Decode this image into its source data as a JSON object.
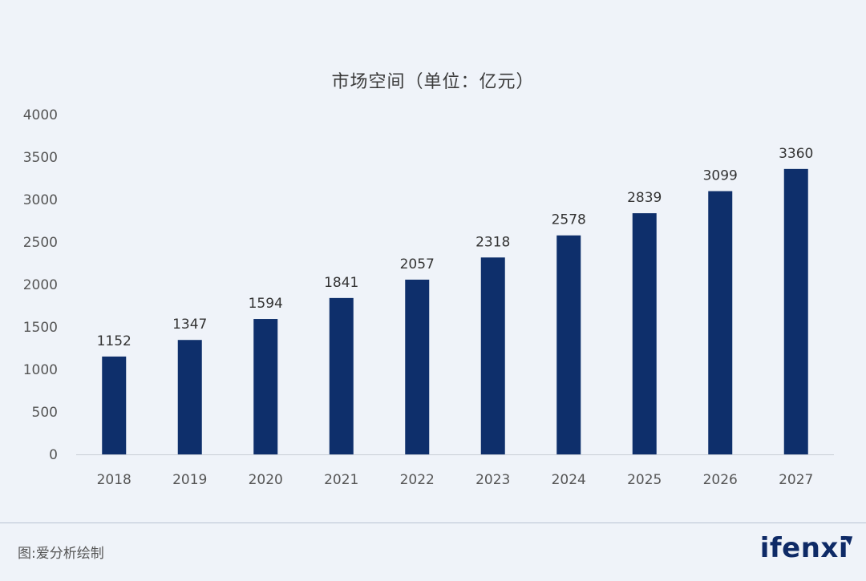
{
  "chart_data": {
    "type": "bar",
    "title": "市场空间（单位：亿元）",
    "categories": [
      "2018",
      "2019",
      "2020",
      "2021",
      "2022",
      "2023",
      "2024",
      "2025",
      "2026",
      "2027"
    ],
    "values": [
      1152,
      1347,
      1594,
      1841,
      2057,
      2318,
      2578,
      2839,
      3099,
      3360
    ],
    "ylim": [
      0,
      4000
    ],
    "yticks": [
      0,
      500,
      1000,
      1500,
      2000,
      2500,
      3000,
      3500,
      4000
    ],
    "xlabel": "",
    "ylabel": "",
    "grid": false,
    "bar_color": "#0e2f6b",
    "data_labels": true
  },
  "footer": {
    "source": "图:爱分析绘制",
    "brand": "ifenxi"
  },
  "colors": {
    "background": "#eff3f9",
    "bar": "#0e2f6b",
    "brand": "#0e2a66"
  }
}
